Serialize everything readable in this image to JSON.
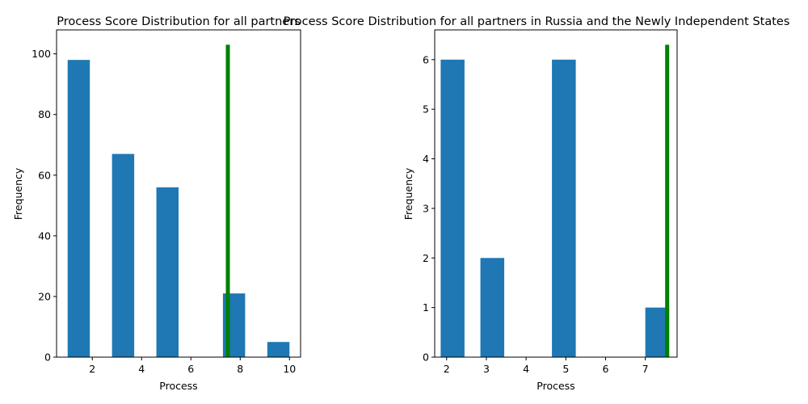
{
  "chart_data": [
    {
      "type": "bar",
      "title": "Process Score Distribution for all partners",
      "xlabel": "Process",
      "ylabel": "Frequency",
      "xlim": [
        0.55,
        10.45
      ],
      "ylim": [
        0,
        107.9
      ],
      "xticks": [
        2,
        4,
        6,
        8,
        10
      ],
      "yticks": [
        0,
        20,
        40,
        60,
        80,
        100
      ],
      "bins": [
        {
          "x0": 1.0,
          "x1": 1.9,
          "value": 98
        },
        {
          "x0": 2.8,
          "x1": 3.7,
          "value": 67
        },
        {
          "x0": 4.6,
          "x1": 5.5,
          "value": 56
        },
        {
          "x0": 6.4,
          "x1": 7.3,
          "value": 0
        },
        {
          "x0": 7.3,
          "x1": 8.2,
          "value": 21
        },
        {
          "x0": 9.1,
          "x1": 10.0,
          "value": 5
        }
      ],
      "reference_line": {
        "x": 7.5,
        "y_top": 103,
        "color": "#008000"
      }
    },
    {
      "type": "bar",
      "title": "Process Score Distribution for all partners in Russia and the Newly Independent States",
      "xlabel": "Process",
      "ylabel": "Frequency",
      "xlim": [
        1.7,
        7.8
      ],
      "ylim": [
        0,
        6.6
      ],
      "xticks": [
        2,
        3,
        4,
        5,
        6,
        7
      ],
      "yticks": [
        0,
        1,
        2,
        3,
        4,
        5,
        6
      ],
      "bins": [
        {
          "x0": 1.85,
          "x1": 2.45,
          "value": 6
        },
        {
          "x0": 2.85,
          "x1": 3.45,
          "value": 2
        },
        {
          "x0": 4.65,
          "x1": 5.25,
          "value": 6
        },
        {
          "x0": 7.0,
          "x1": 7.6,
          "value": 1
        }
      ],
      "reference_line": {
        "x": 7.55,
        "y_top": 6.3,
        "color": "#008000"
      }
    }
  ]
}
